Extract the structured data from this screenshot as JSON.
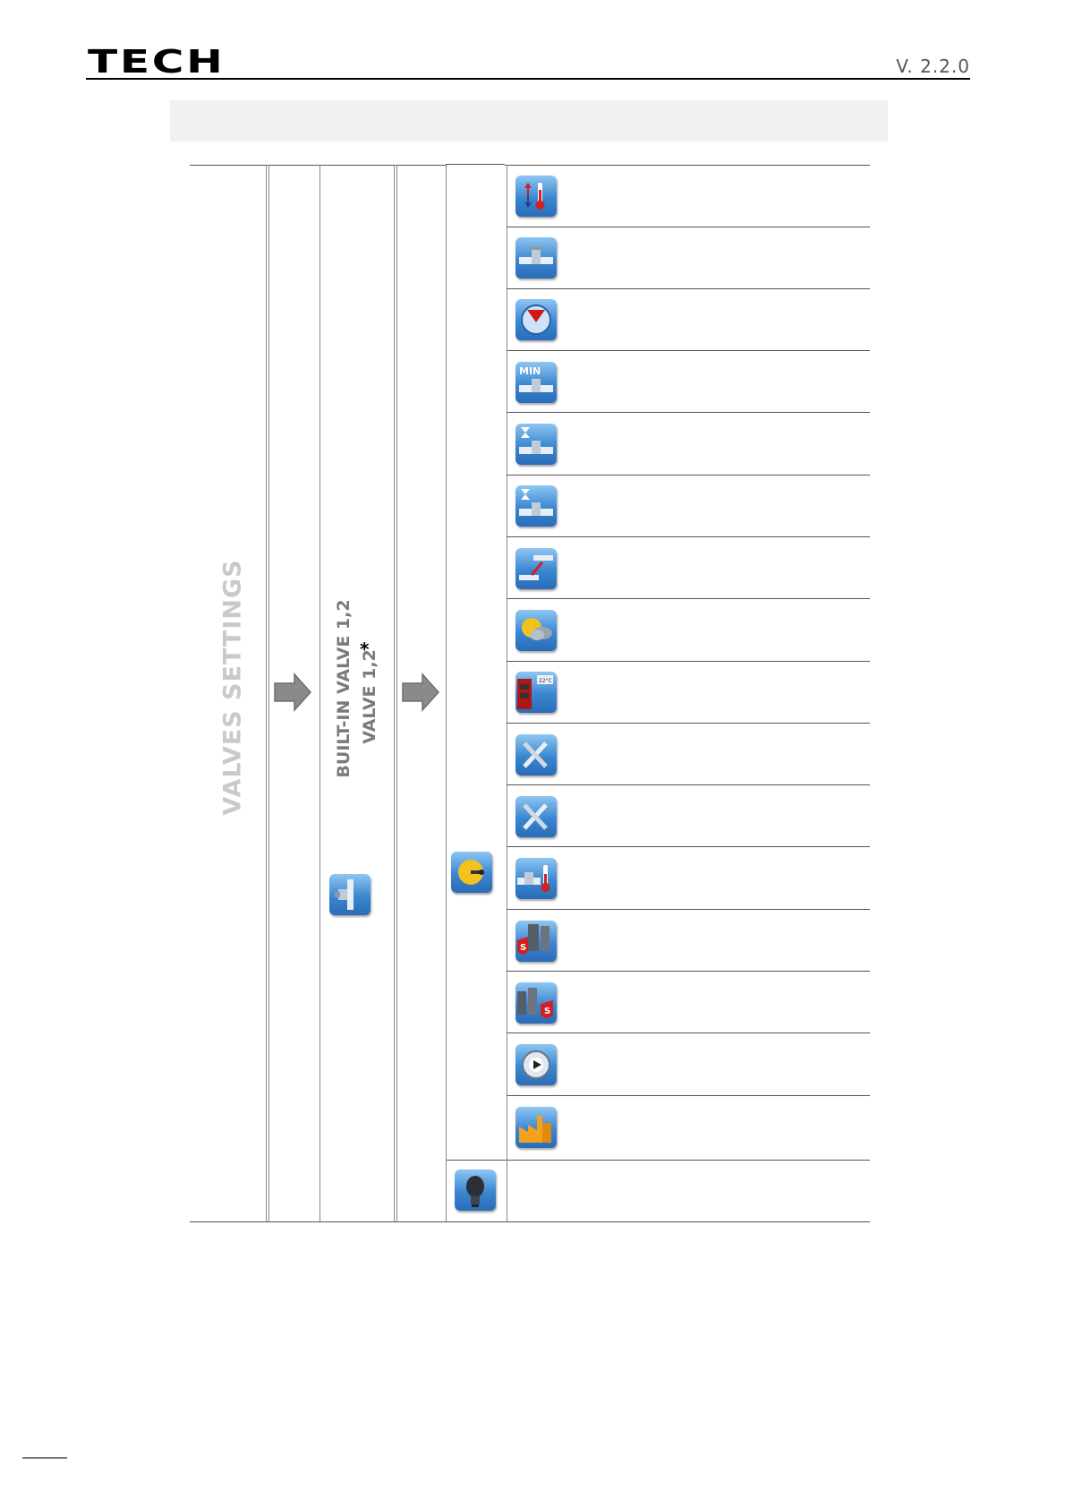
{
  "header": {
    "logo_text": "TECH",
    "version": "V. 2.2.0"
  },
  "menu": {
    "root_label": "VALVES SETTINGS",
    "valve_label_line1": "BUILT-IN VALVE 1,2",
    "valve_label_line2": "VALVE 1,2",
    "asterisk": "*",
    "valve_icon": "valve-icon",
    "submenu_icon": "valve-settings-icon",
    "submenu_items": [
      {
        "icon": "thermometer-arrows-icon"
      },
      {
        "icon": "valve-icon"
      },
      {
        "icon": "gauge-icon"
      },
      {
        "icon": "min-valve-icon"
      },
      {
        "icon": "hourglass-valve-icon"
      },
      {
        "icon": "hourglass-valve-alt-icon"
      },
      {
        "icon": "valve-direction-icon"
      },
      {
        "icon": "weather-icon"
      },
      {
        "icon": "room-regulator-icon"
      },
      {
        "icon": "tools-icon"
      },
      {
        "icon": "tools-alt-icon"
      },
      {
        "icon": "valve-thermometer-icon"
      },
      {
        "icon": "boiler-protection-icon"
      },
      {
        "icon": "return-protection-icon"
      },
      {
        "icon": "pump-icon"
      },
      {
        "icon": "factory-settings-icon"
      }
    ],
    "last_icon": "light-bulb-icon",
    "colors": {
      "icon_blue": "#3a86d0",
      "arrow_gray": "#8a8a8a",
      "root_label_gray": "#c9c9c9"
    }
  }
}
